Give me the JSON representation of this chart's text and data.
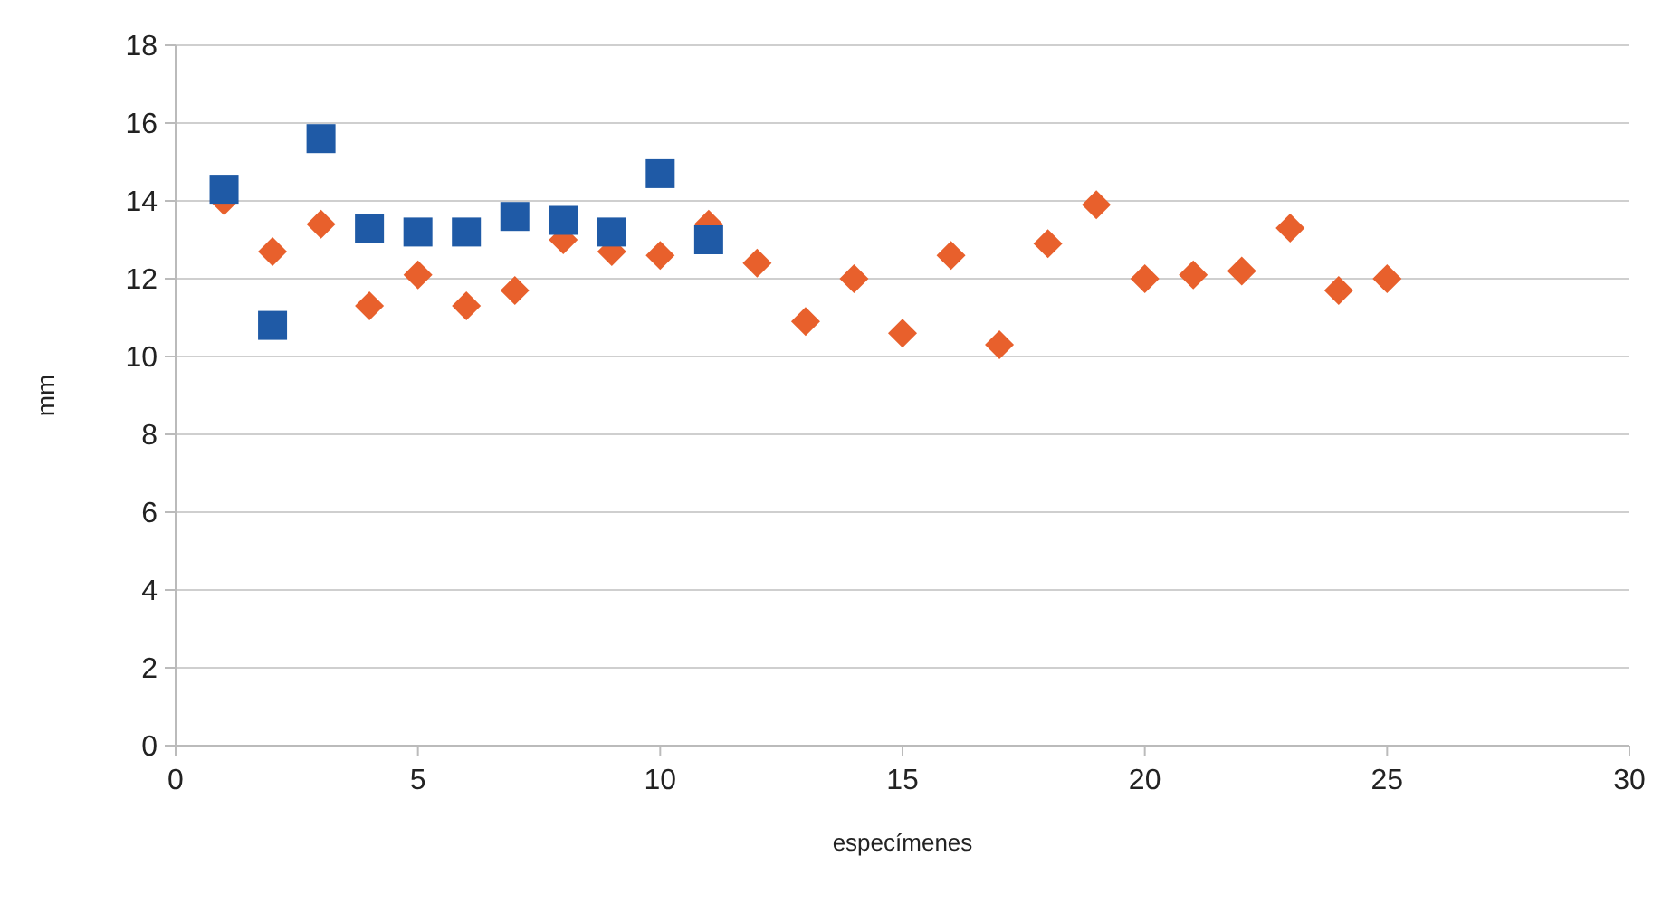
{
  "chart_data": {
    "type": "scatter",
    "xlabel": "especímenes",
    "ylabel": "mm",
    "xlim": [
      0,
      30
    ],
    "xticks": [
      0,
      5,
      10,
      15,
      20,
      25,
      30
    ],
    "ylim": [
      0,
      18
    ],
    "yticks": [
      0,
      2,
      4,
      6,
      8,
      10,
      12,
      14,
      16,
      18
    ],
    "grid": "y",
    "series": [
      {
        "color": "#e8602c",
        "marker": "diamond",
        "x": [
          1,
          2,
          3,
          4,
          5,
          6,
          7,
          8,
          9,
          10,
          11,
          12,
          13,
          14,
          15,
          16,
          17,
          18,
          19,
          20,
          21,
          22,
          23,
          24,
          25
        ],
        "values": [
          14.0,
          12.7,
          13.4,
          11.3,
          12.1,
          11.3,
          11.7,
          13.0,
          12.7,
          12.6,
          13.4,
          12.4,
          10.9,
          12.0,
          10.6,
          12.6,
          10.3,
          12.9,
          13.9,
          12.0,
          12.1,
          12.2,
          13.3,
          11.7,
          12.0
        ]
      },
      {
        "color": "#1f5aa6",
        "marker": "square",
        "x": [
          1,
          2,
          3,
          4,
          5,
          6,
          7,
          8,
          9,
          10,
          11
        ],
        "values": [
          14.3,
          10.8,
          15.6,
          13.3,
          13.2,
          13.2,
          13.6,
          13.5,
          13.2,
          14.7,
          13.0
        ]
      }
    ]
  }
}
